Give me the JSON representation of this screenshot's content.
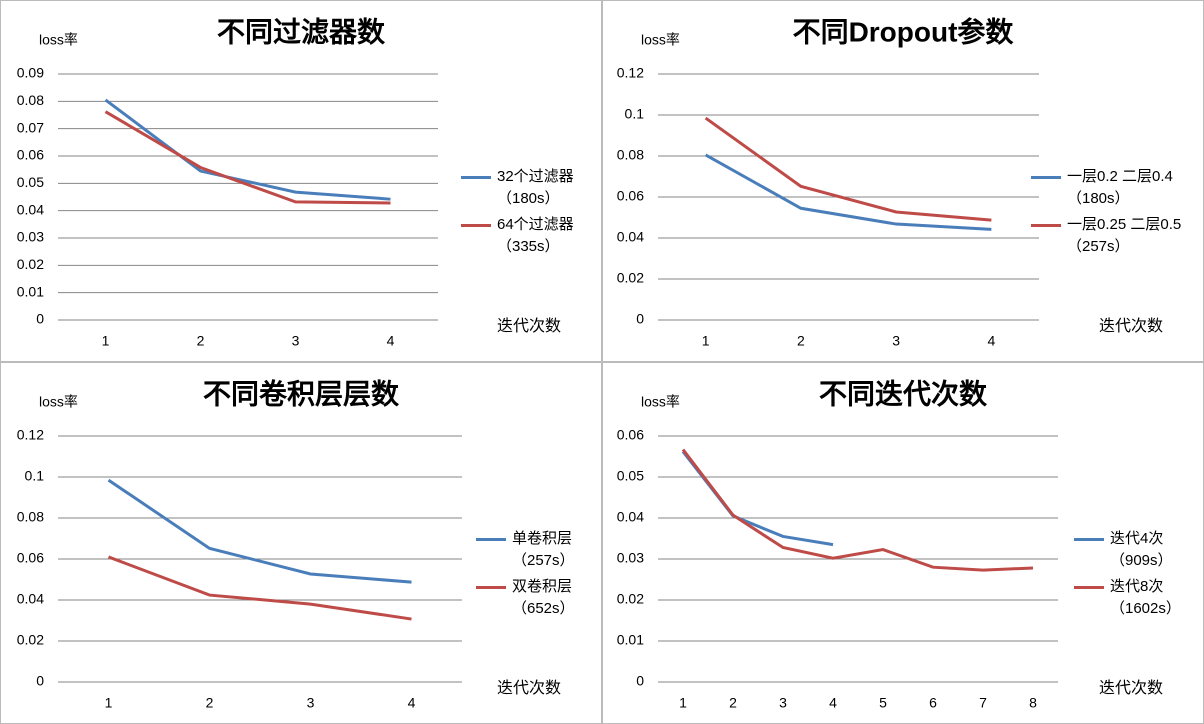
{
  "chart_data": [
    {
      "type": "line",
      "title": "不同过滤器数",
      "y_label": "loss率",
      "x_label": "迭代次数",
      "categories": [
        "1",
        "2",
        "3",
        "4"
      ],
      "ylim": [
        0,
        0.09
      ],
      "yticks": [
        0,
        0.01,
        0.02,
        0.03,
        0.04,
        0.05,
        0.06,
        0.07,
        0.08,
        0.09
      ],
      "grid": true,
      "series": [
        {
          "name": "32个过滤器（180s）",
          "color": "#4a7ebb",
          "values": [
            0.0805,
            0.0545,
            0.0468,
            0.0442
          ]
        },
        {
          "name": "64个过滤器（335s）",
          "color": "#be4b48",
          "values": [
            0.0762,
            0.0558,
            0.0432,
            0.0428
          ]
        }
      ]
    },
    {
      "type": "line",
      "title": "不同Dropout参数",
      "y_label": "loss率",
      "x_label": "迭代次数",
      "categories": [
        "1",
        "2",
        "3",
        "4"
      ],
      "ylim": [
        0,
        0.12
      ],
      "yticks": [
        0,
        0.02,
        0.04,
        0.06,
        0.08,
        0.1,
        0.12
      ],
      "grid": true,
      "series": [
        {
          "name": "一层0.2 二层0.4（180s）",
          "color": "#4a7ebb",
          "values": [
            0.0805,
            0.0545,
            0.0468,
            0.0442
          ]
        },
        {
          "name": "一层0.25 二层0.5（257s）",
          "color": "#be4b48",
          "values": [
            0.0985,
            0.0652,
            0.0527,
            0.0487
          ]
        }
      ]
    },
    {
      "type": "line",
      "title": "不同卷积层层数",
      "y_label": "loss率",
      "x_label": "迭代次数",
      "categories": [
        "1",
        "2",
        "3",
        "4"
      ],
      "ylim": [
        0,
        0.12
      ],
      "yticks": [
        0,
        0.02,
        0.04,
        0.06,
        0.08,
        0.1,
        0.12
      ],
      "grid": true,
      "series": [
        {
          "name": "单卷积层（257s）",
          "color": "#4a7ebb",
          "values": [
            0.0985,
            0.0652,
            0.0527,
            0.0487
          ]
        },
        {
          "name": "双卷积层（652s）",
          "color": "#be4b48",
          "values": [
            0.061,
            0.0424,
            0.038,
            0.0307
          ]
        }
      ]
    },
    {
      "type": "line",
      "title": "不同迭代次数",
      "y_label": "loss率",
      "x_label": "迭代次数",
      "categories": [
        "1",
        "2",
        "3",
        "4",
        "5",
        "6",
        "7",
        "8"
      ],
      "ylim": [
        0,
        0.06
      ],
      "yticks": [
        0,
        0.01,
        0.02,
        0.03,
        0.04,
        0.05,
        0.06
      ],
      "grid": true,
      "series": [
        {
          "name": "迭代4次（909s）",
          "color": "#4a7ebb",
          "values": [
            0.0562,
            0.0405,
            0.0355,
            0.0335,
            null,
            null,
            null,
            null
          ]
        },
        {
          "name": "迭代8次（1602s）",
          "color": "#be4b48",
          "values": [
            0.0567,
            0.0407,
            0.0328,
            0.0302,
            0.0323,
            0.028,
            0.0273,
            0.0278
          ]
        }
      ]
    }
  ]
}
